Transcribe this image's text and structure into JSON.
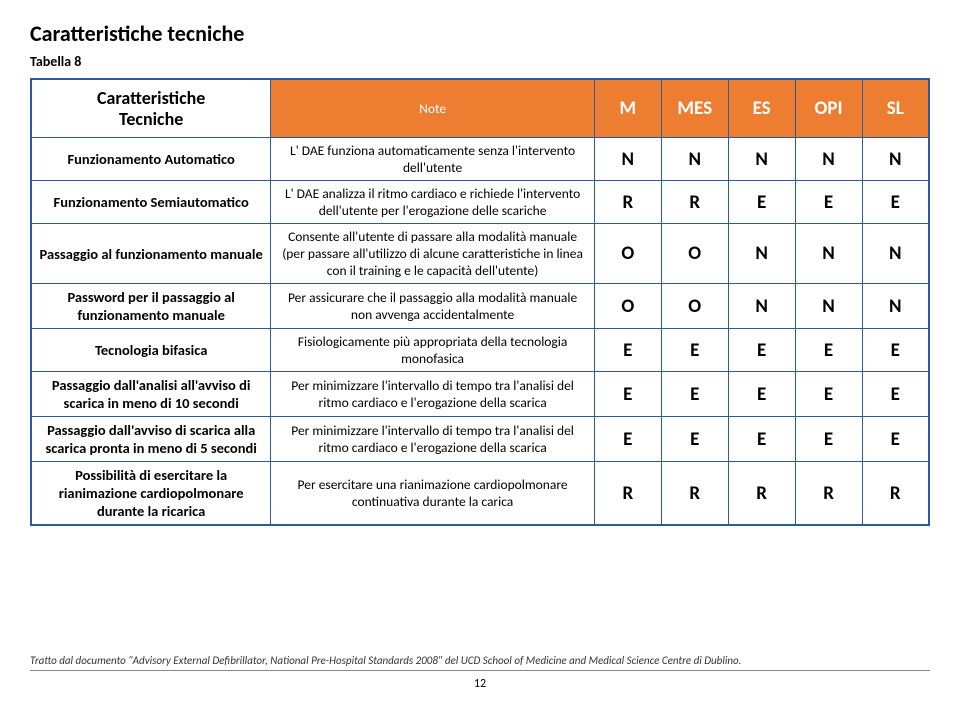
{
  "title": "Caratteristiche tecniche",
  "table_label": "Tabella 8",
  "header": {
    "feature_line1": "Caratteristiche",
    "feature_line2": "Tecniche",
    "note": "Note",
    "cols": [
      "M",
      "MES",
      "ES",
      "OPI",
      "SL"
    ]
  },
  "rows": [
    {
      "feature": "Funzionamento Automatico",
      "note": "L' DAE funziona automaticamente senza l'intervento dell'utente",
      "vals": [
        "N",
        "N",
        "N",
        "N",
        "N"
      ]
    },
    {
      "feature": "Funzionamento Semiautomatico",
      "note": "L' DAE analizza il ritmo cardiaco e richiede l'intervento dell'utente per l'erogazione delle scariche",
      "vals": [
        "R",
        "R",
        "E",
        "E",
        "E"
      ]
    },
    {
      "feature": "Passaggio al funzionamento manuale",
      "note": "Consente all'utente di passare alla modalità manuale (per passare all'utilizzo di alcune caratteristiche in linea con il training e le capacità dell'utente)",
      "vals": [
        "O",
        "O",
        "N",
        "N",
        "N"
      ]
    },
    {
      "feature": "Password per il passaggio al funzionamento manuale",
      "note": "Per assicurare che il passaggio alla modalità manuale non avvenga accidentalmente",
      "vals": [
        "O",
        "O",
        "N",
        "N",
        "N"
      ]
    },
    {
      "feature": "Tecnologia bifasica",
      "note": "Fisiologicamente più appropriata della tecnologia monofasica",
      "vals": [
        "E",
        "E",
        "E",
        "E",
        "E"
      ]
    },
    {
      "feature": "Passaggio dall'analisi all'avviso di scarica in meno di 10 secondi",
      "note": "Per minimizzare l'intervallo di tempo tra l'analisi del ritmo cardiaco e l'erogazione della scarica",
      "vals": [
        "E",
        "E",
        "E",
        "E",
        "E"
      ]
    },
    {
      "feature": "Passaggio dall'avviso di scarica alla scarica pronta in meno di 5 secondi",
      "note": "Per minimizzare l'intervallo di tempo tra l'analisi del ritmo cardiaco e l'erogazione della scarica",
      "vals": [
        "E",
        "E",
        "E",
        "E",
        "E"
      ]
    },
    {
      "feature": "Possibilità di esercitare la rianimazione cardiopolmonare durante la ricarica",
      "note": "Per esercitare una rianimazione cardiopolmonare continuativa durante la carica",
      "vals": [
        "R",
        "R",
        "R",
        "R",
        "R"
      ]
    }
  ],
  "footer_credit": "Tratto dal documento \"Advisory External Defibrillator, National Pre-Hospital Standards 2008\" del UCD School of Medicine and Medical Science Centre di Dublino.",
  "page_number": "12",
  "colors": {
    "header_bg": "#ed7d31",
    "border": "#2e5aa0"
  }
}
